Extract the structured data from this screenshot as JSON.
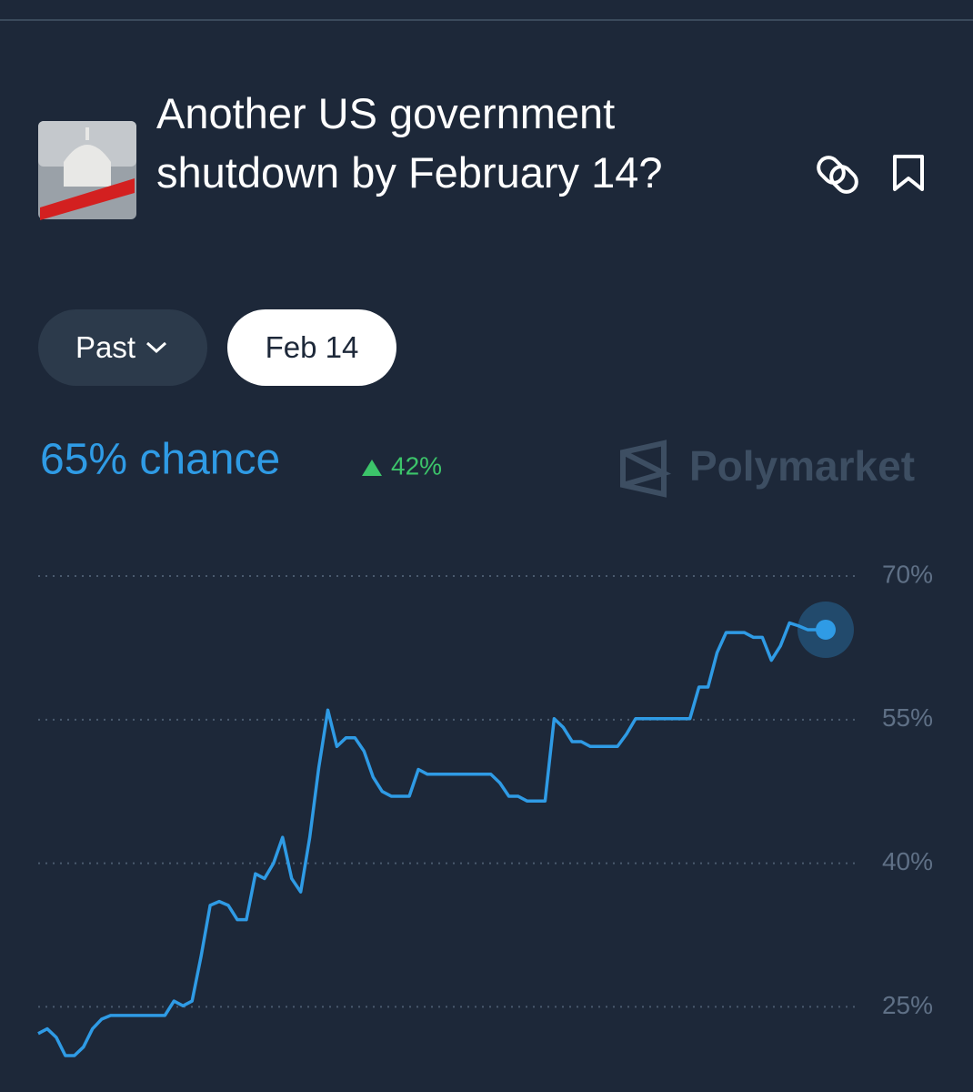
{
  "header": {
    "title": "Another US government shutdown by February 14?"
  },
  "filters": [
    "Past",
    "Feb 14"
  ],
  "brand": "Polymarket",
  "chart_data": {
    "type": "line",
    "headline": "65% chance",
    "change": "42%",
    "color": "#2f9be5",
    "values": [
      22.2,
      22.7,
      21.8,
      19.9,
      19.9,
      20.8,
      22.7,
      23.7,
      24.1,
      24.1,
      24.1,
      24.1,
      24.1,
      24.1,
      24.1,
      25.6,
      25.1,
      25.6,
      30.3,
      35.6,
      36.0,
      35.6,
      34.1,
      34.1,
      38.9,
      38.4,
      40,
      42.7,
      38.4,
      37.0,
      42.7,
      50,
      56,
      52.2,
      53.1,
      53.1,
      51.7,
      49,
      47.5,
      47.0,
      47.0,
      47.0,
      49.8,
      49.3,
      49.3,
      49.3,
      49.3,
      49.3,
      49.3,
      49.3,
      49.3,
      48.4,
      47.0,
      47.0,
      46.5,
      46.5,
      46.5,
      55.1,
      54.2,
      52.7,
      52.7,
      52.2,
      52.2,
      52.2,
      52.2,
      53.5,
      55.1,
      55.1,
      55.1,
      55.1,
      55.1,
      55.1,
      55.1,
      58.4,
      58.4,
      62,
      64.1,
      64.1,
      64.1,
      63.6,
      63.6,
      61.2,
      62.7,
      65.1,
      64.8,
      64.4,
      64.4,
      64.4
    ],
    "ylim": [
      18,
      72
    ],
    "yticks": [
      {
        "value": 25,
        "label": "25%"
      },
      {
        "value": 40,
        "label": "40%"
      },
      {
        "value": 55,
        "label": "55%"
      },
      {
        "value": 70,
        "label": "70%"
      }
    ],
    "grid": true
  }
}
